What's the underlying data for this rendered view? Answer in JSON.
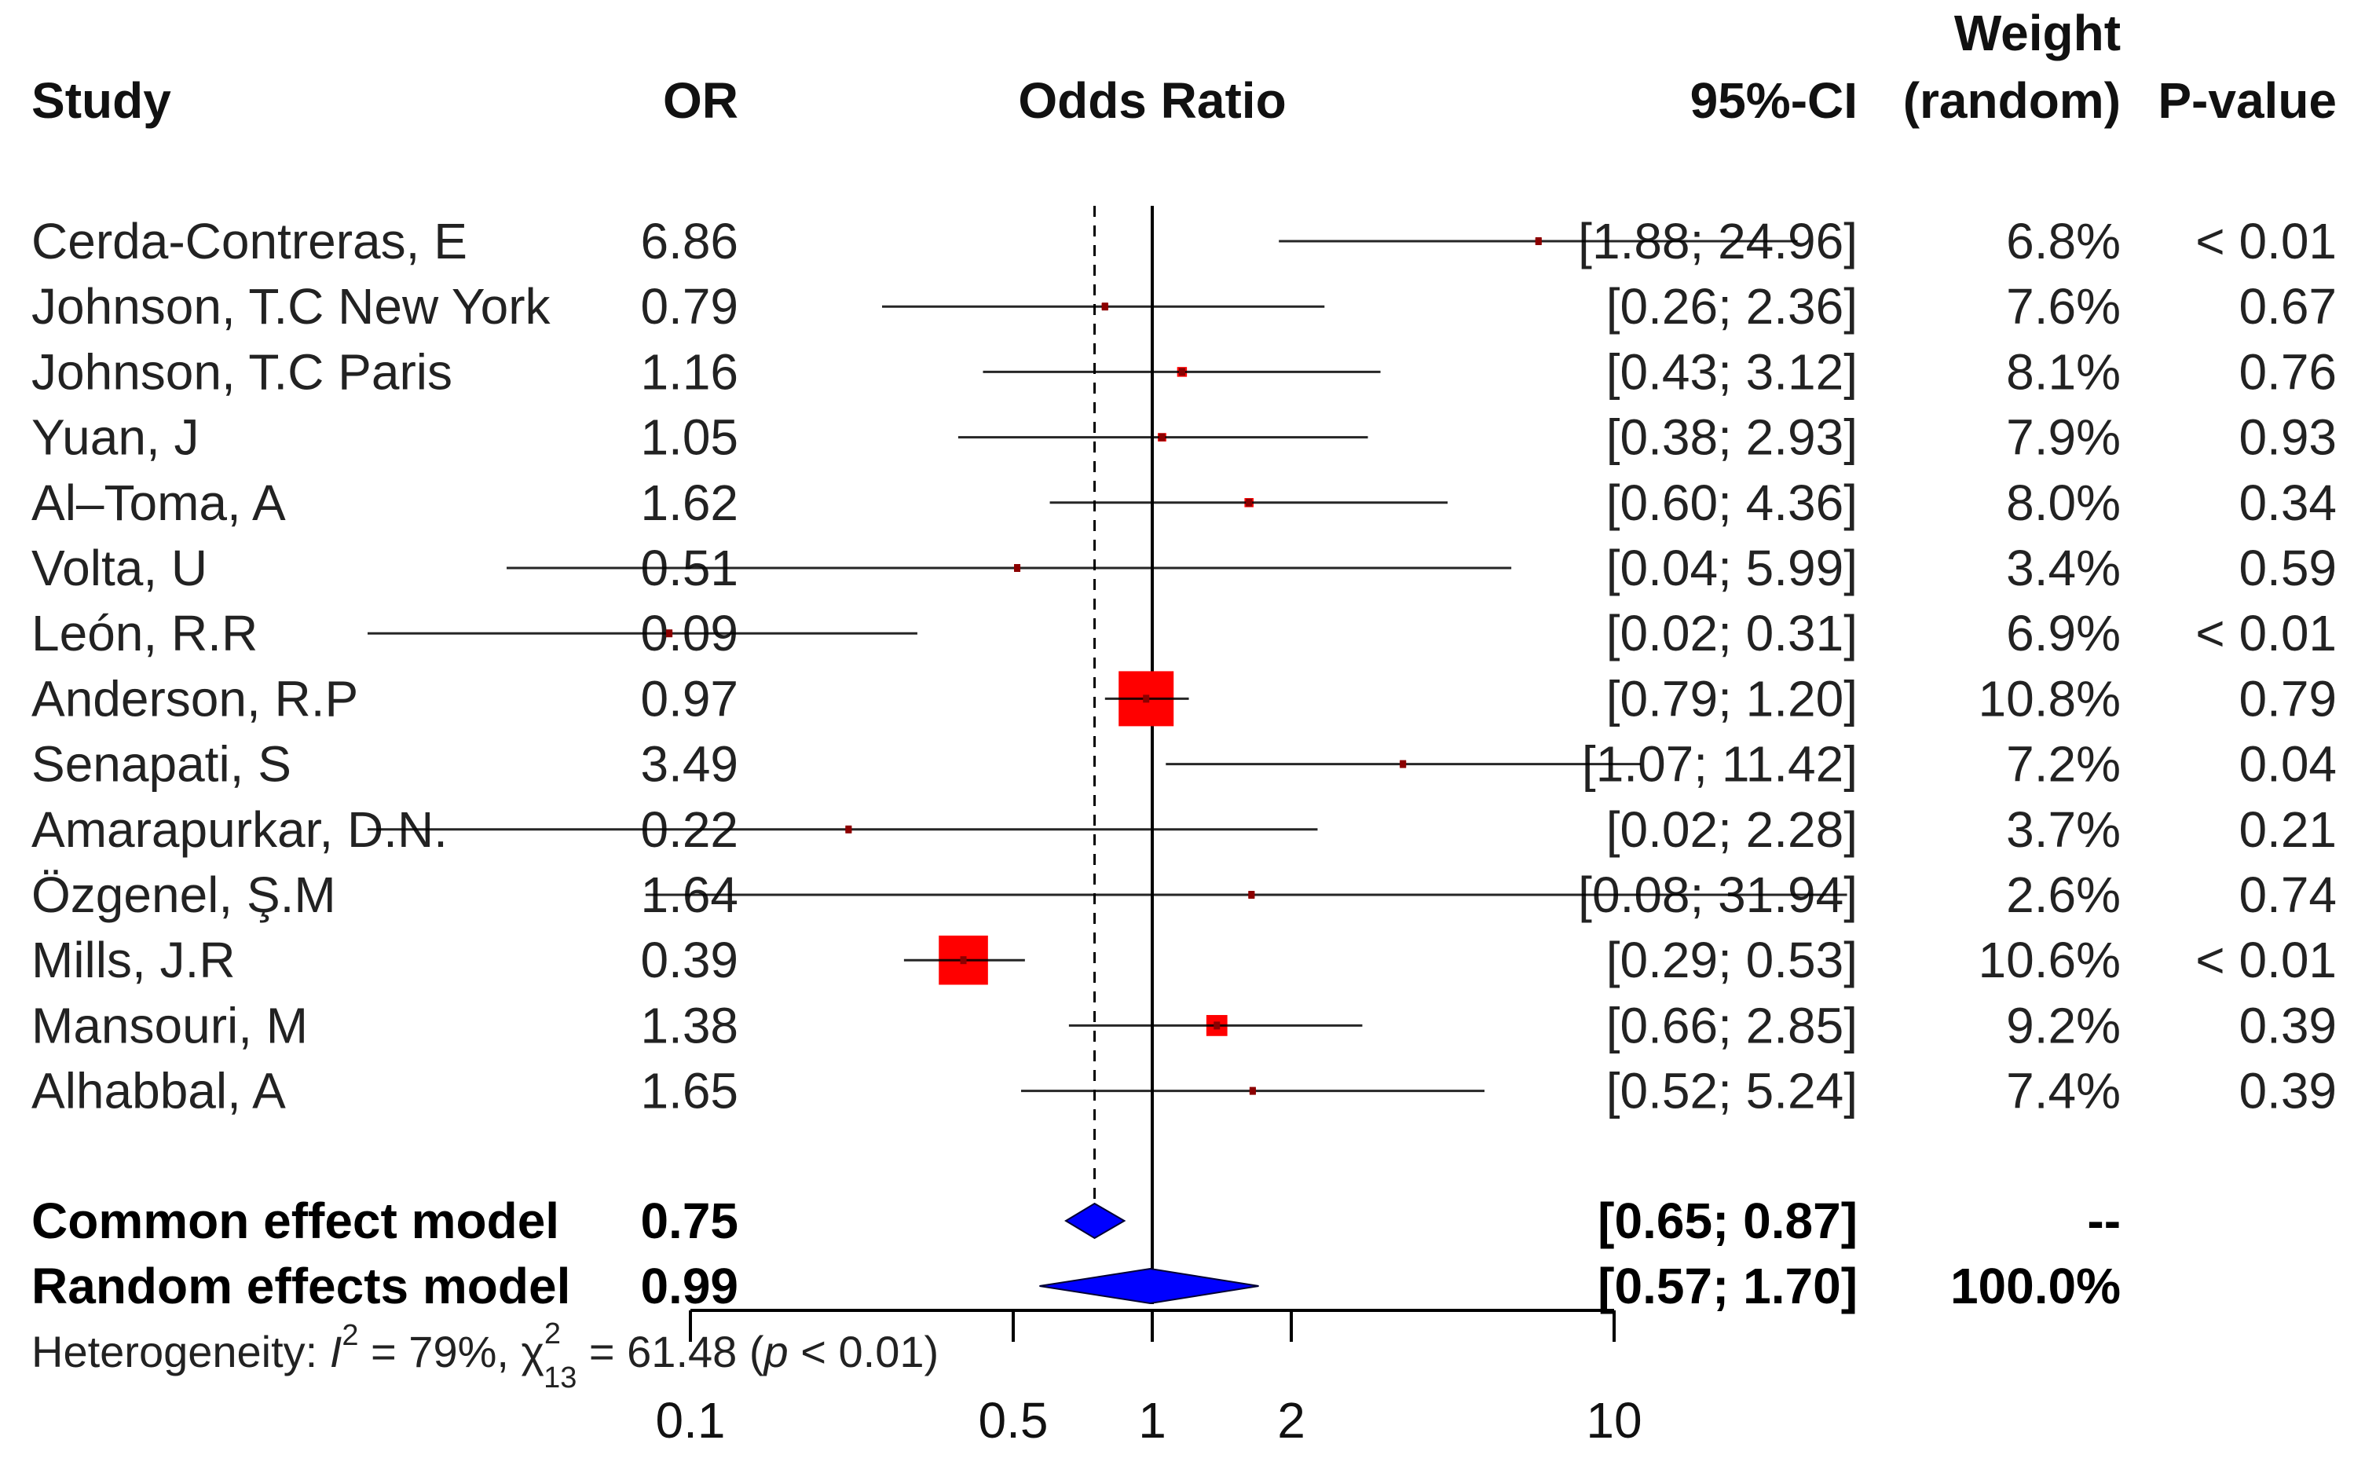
{
  "chart_data": {
    "type": "forest",
    "scale": "log",
    "headers": {
      "study": "Study",
      "or": "OR",
      "plot": "Odds Ratio",
      "ci": "95%-CI",
      "weight_top": "Weight",
      "weight_bottom": "(random)",
      "pvalue": "P-value"
    },
    "studies": [
      {
        "name": "Cerda-Contreras, E",
        "or": 6.86,
        "or_label": "6.86",
        "lo": 1.88,
        "hi": 24.96,
        "ci": "[1.88; 24.96]",
        "weight": 6.8,
        "weight_label": "6.8%",
        "p": "< 0.01"
      },
      {
        "name": "Johnson, T.C New York",
        "or": 0.79,
        "or_label": "0.79",
        "lo": 0.26,
        "hi": 2.36,
        "ci": "[0.26;  2.36]",
        "weight": 7.6,
        "weight_label": "7.6%",
        "p": "0.67"
      },
      {
        "name": "Johnson, T.C Paris",
        "or": 1.16,
        "or_label": "1.16",
        "lo": 0.43,
        "hi": 3.12,
        "ci": "[0.43;  3.12]",
        "weight": 8.1,
        "weight_label": "8.1%",
        "p": "0.76"
      },
      {
        "name": "Yuan, J",
        "or": 1.05,
        "or_label": "1.05",
        "lo": 0.38,
        "hi": 2.93,
        "ci": "[0.38;  2.93]",
        "weight": 7.9,
        "weight_label": "7.9%",
        "p": "0.93"
      },
      {
        "name": "Al–Toma, A",
        "or": 1.62,
        "or_label": "1.62",
        "lo": 0.6,
        "hi": 4.36,
        "ci": "[0.60;  4.36]",
        "weight": 8.0,
        "weight_label": "8.0%",
        "p": "0.34"
      },
      {
        "name": "Volta, U",
        "or": 0.51,
        "or_label": "0.51",
        "lo": 0.04,
        "hi": 5.99,
        "ci": "[0.04;  5.99]",
        "weight": 3.4,
        "weight_label": "3.4%",
        "p": "0.59"
      },
      {
        "name": "León, R.R",
        "or": 0.09,
        "or_label": "0.09",
        "lo": 0.02,
        "hi": 0.31,
        "ci": "[0.02;  0.31]",
        "weight": 6.9,
        "weight_label": "6.9%",
        "p": "< 0.01"
      },
      {
        "name": "Anderson, R.P",
        "or": 0.97,
        "or_label": "0.97",
        "lo": 0.79,
        "hi": 1.2,
        "ci": "[0.79;  1.20]",
        "weight": 10.8,
        "weight_label": "10.8%",
        "p": "0.79"
      },
      {
        "name": "Senapati, S",
        "or": 3.49,
        "or_label": "3.49",
        "lo": 1.07,
        "hi": 11.42,
        "ci": "[1.07; 11.42]",
        "weight": 7.2,
        "weight_label": "7.2%",
        "p": "0.04"
      },
      {
        "name": "Amarapurkar, D.N.",
        "or": 0.22,
        "or_label": "0.22",
        "lo": 0.02,
        "hi": 2.28,
        "ci": "[0.02;  2.28]",
        "weight": 3.7,
        "weight_label": "3.7%",
        "p": "0.21"
      },
      {
        "name": "Özgenel, Ş.M",
        "or": 1.64,
        "or_label": "1.64",
        "lo": 0.08,
        "hi": 31.94,
        "ci": "[0.08; 31.94]",
        "weight": 2.6,
        "weight_label": "2.6%",
        "p": "0.74"
      },
      {
        "name": "Mills, J.R",
        "or": 0.39,
        "or_label": "0.39",
        "lo": 0.29,
        "hi": 0.53,
        "ci": "[0.29;  0.53]",
        "weight": 10.6,
        "weight_label": "10.6%",
        "p": "< 0.01"
      },
      {
        "name": "Mansouri, M",
        "or": 1.38,
        "or_label": "1.38",
        "lo": 0.66,
        "hi": 2.85,
        "ci": "[0.66;  2.85]",
        "weight": 9.2,
        "weight_label": "9.2%",
        "p": "0.39"
      },
      {
        "name": "Alhabbal, A",
        "or": 1.65,
        "or_label": "1.65",
        "lo": 0.52,
        "hi": 5.24,
        "ci": "[0.52;  5.24]",
        "weight": 7.4,
        "weight_label": "7.4%",
        "p": "0.39"
      }
    ],
    "summaries": [
      {
        "name": "Common effect model",
        "or": 0.75,
        "or_label": "0.75",
        "lo": 0.65,
        "hi": 0.87,
        "ci": "[0.65;  0.87]",
        "weight_label": "--"
      },
      {
        "name": "Random effects model",
        "or": 0.99,
        "or_label": "0.99",
        "lo": 0.57,
        "hi": 1.7,
        "ci": "[0.57;  1.70]",
        "weight_label": "100.0%"
      }
    ],
    "heterogeneity": {
      "prefix": "Heterogeneity: ",
      "i_symbol": "I",
      "i_sup": "2",
      "i_value": " = 79%, ",
      "chi_symbol": "χ",
      "chi_sup": "2",
      "chi_sub": "13",
      "chi_value": " = 61.48 (",
      "p_symbol": "p",
      "p_value": " < 0.01)"
    },
    "x_ticks": [
      {
        "value": 0.1,
        "label": "0.1"
      },
      {
        "value": 0.5,
        "label": "0.5"
      },
      {
        "value": 1,
        "label": "1"
      },
      {
        "value": 2,
        "label": "2"
      },
      {
        "value": 10,
        "label": "10"
      }
    ],
    "reference_line": 1,
    "common_effect_line": 0.75,
    "colors": {
      "study_box": "#ff0000",
      "study_center": "#8b0000",
      "ci_line": "#000000",
      "diamond": "#0000ff",
      "text": "#222222"
    }
  }
}
